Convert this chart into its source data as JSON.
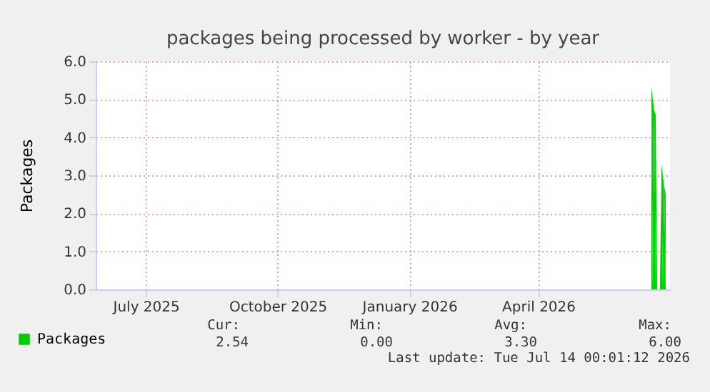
{
  "chart_data": {
    "type": "area",
    "title": "packages being processed by worker - by year",
    "ylabel": "Packages",
    "x": [
      "2026-06-19",
      "2026-06-20",
      "2026-06-21",
      "2026-06-22",
      "2026-06-23",
      "2026-06-24",
      "2026-06-25",
      "2026-06-26",
      "2026-06-27",
      "2026-06-28",
      "2026-06-29"
    ],
    "series": [
      {
        "name": "Packages",
        "color": "#00cc00",
        "values": [
          5.3,
          5.0,
          4.7,
          4.6,
          0,
          0,
          0,
          3.3,
          3.0,
          2.7,
          2.5
        ]
      }
    ],
    "xlim": [
      "2025-05-27",
      "2026-07-02"
    ],
    "xticks": [
      {
        "value": "2025-07-01",
        "label": "July 2025"
      },
      {
        "value": "2025-10-01",
        "label": "October 2025"
      },
      {
        "value": "2026-01-01",
        "label": "January 2026"
      },
      {
        "value": "2026-04-01",
        "label": "April 2026"
      }
    ],
    "ylim": [
      0,
      6
    ],
    "yticks": [
      {
        "value": 0,
        "label": "0.0"
      },
      {
        "value": 1,
        "label": "1.0"
      },
      {
        "value": 2,
        "label": "2.0"
      },
      {
        "value": 3,
        "label": "3.0"
      },
      {
        "value": 4,
        "label": "4.0"
      },
      {
        "value": 5,
        "label": "5.0"
      },
      {
        "value": 6,
        "label": "6.0"
      }
    ],
    "grid": true,
    "legend": "bottom left",
    "annotations": [
      "Cur:",
      "Min:",
      "Avg:",
      "Max:",
      "2.54",
      "0.00",
      "3.30",
      "6.00",
      "Last update: Tue Jul 14 00:01:12 2026"
    ]
  }
}
